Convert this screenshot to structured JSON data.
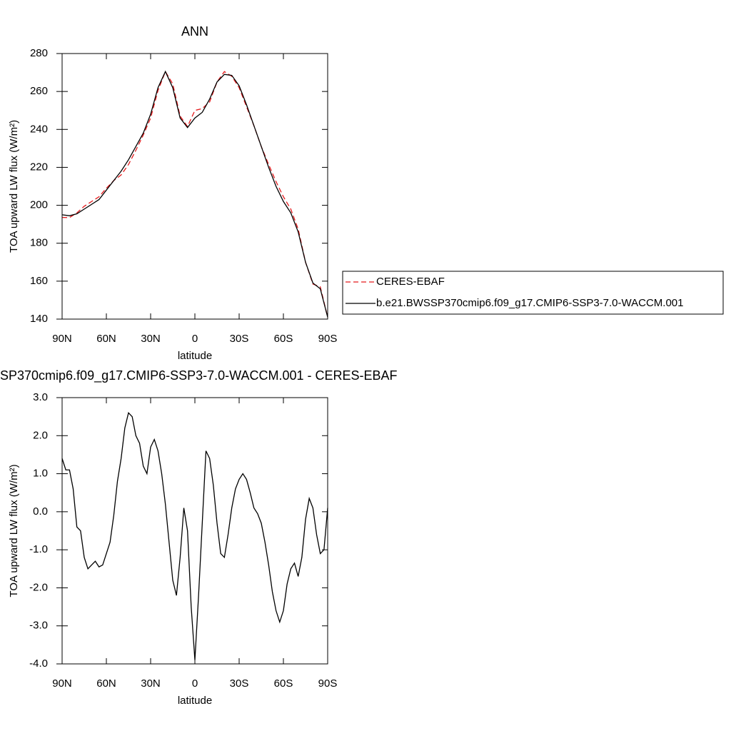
{
  "chart_data": [
    {
      "type": "line",
      "title": "ANN",
      "xlabel": "latitude",
      "ylabel": "TOA upward LW flux (W/m²)",
      "x": [
        90,
        85,
        80,
        75,
        70,
        65,
        60,
        55,
        50,
        45,
        40,
        35,
        30,
        25,
        20,
        15,
        10,
        5,
        0,
        -5,
        -10,
        -15,
        -20,
        -25,
        -30,
        -35,
        -40,
        -45,
        -50,
        -55,
        -60,
        -65,
        -70,
        -75,
        -80,
        -85,
        -90
      ],
      "series": [
        {
          "name": "CERES-EBAF",
          "color": "#e41a1c",
          "dash": true,
          "values": [
            193.6,
            193.5,
            196,
            199.5,
            202,
            204.5,
            209,
            213,
            216,
            221.5,
            229,
            237,
            246,
            260.5,
            270.5,
            264,
            247,
            241.5,
            250,
            251,
            254.5,
            265,
            270.5,
            268,
            262,
            252,
            242,
            231,
            221.5,
            212.5,
            204.5,
            198,
            187.5,
            170,
            158.5,
            157,
            141
          ]
        },
        {
          "name": "b.e21.BWSSP370cmip6.f09_g17.CMIP6-SSP3-7.0-WACCM.001",
          "color": "#000000",
          "dash": false,
          "values": [
            195,
            194.5,
            195.5,
            198,
            200.5,
            203,
            208,
            213,
            218,
            224,
            231,
            238,
            248,
            262,
            270.5,
            262,
            246,
            241,
            246,
            249,
            256,
            265,
            269,
            268.5,
            263,
            253,
            242,
            231,
            220,
            210,
            202,
            196,
            186,
            170,
            159,
            156,
            141
          ]
        }
      ],
      "xlim": [
        90,
        -90
      ],
      "xticks": [
        {
          "value": 90,
          "label": "90N"
        },
        {
          "value": 60,
          "label": "60N"
        },
        {
          "value": 30,
          "label": "30N"
        },
        0,
        {
          "value": -30,
          "label": "30S"
        },
        {
          "value": -60,
          "label": "60S"
        },
        {
          "value": -90,
          "label": "90S"
        }
      ],
      "ylim": [
        140,
        280
      ],
      "yticks": [
        140,
        160,
        180,
        200,
        220,
        240,
        260,
        280
      ],
      "legend": "right"
    },
    {
      "type": "line",
      "title": "SP370cmip6.f09_g17.CMIP6-SSP3-7.0-WACCM.001 - CERES-EBAF",
      "xlabel": "latitude",
      "ylabel": "TOA upward LW flux (W/m²)",
      "x": [
        90,
        87.5,
        85,
        82.5,
        80,
        77.5,
        75,
        72.5,
        70,
        67.5,
        65,
        62.5,
        60,
        57.5,
        55,
        52.5,
        50,
        47.5,
        45,
        42.5,
        40,
        37.5,
        35,
        32.5,
        30,
        27.5,
        25,
        22.5,
        20,
        17.5,
        15,
        12.5,
        10,
        7.5,
        5,
        2.5,
        0,
        -2.5,
        -5,
        -7.5,
        -10,
        -12.5,
        -15,
        -17.5,
        -20,
        -22.5,
        -25,
        -27.5,
        -30,
        -32.5,
        -35,
        -37.5,
        -40,
        -42.5,
        -45,
        -47.5,
        -50,
        -52.5,
        -55,
        -57.5,
        -60,
        -62.5,
        -65,
        -67.5,
        -70,
        -72.5,
        -75,
        -77.5,
        -80,
        -82.5,
        -85,
        -87.5,
        -90
      ],
      "series": [
        {
          "color": "#000000",
          "dash": false,
          "values": [
            1.4,
            1.1,
            1.1,
            0.6,
            -0.4,
            -0.5,
            -1.2,
            -1.5,
            -1.4,
            -1.3,
            -1.45,
            -1.4,
            -1.1,
            -0.8,
            -0.1,
            0.8,
            1.4,
            2.2,
            2.6,
            2.5,
            2.0,
            1.8,
            1.2,
            1.0,
            1.7,
            1.9,
            1.6,
            1.0,
            0.2,
            -0.8,
            -1.8,
            -2.2,
            -1.2,
            0.1,
            -0.5,
            -2.5,
            -3.9,
            -2.2,
            -0.3,
            1.6,
            1.4,
            0.7,
            -0.3,
            -1.1,
            -1.2,
            -0.6,
            0.1,
            0.6,
            0.85,
            1.0,
            0.85,
            0.5,
            0.1,
            -0.05,
            -0.3,
            -0.8,
            -1.4,
            -2.1,
            -2.6,
            -2.9,
            -2.6,
            -1.9,
            -1.5,
            -1.35,
            -1.7,
            -1.2,
            -0.2,
            0.35,
            0.1,
            -0.6,
            -1.1,
            -1.0,
            0.1
          ]
        }
      ],
      "xlim": [
        90,
        -90
      ],
      "xticks": [
        {
          "value": 90,
          "label": "90N"
        },
        {
          "value": 60,
          "label": "60N"
        },
        {
          "value": 30,
          "label": "30N"
        },
        0,
        {
          "value": -30,
          "label": "30S"
        },
        {
          "value": -60,
          "label": "60S"
        },
        {
          "value": -90,
          "label": "90S"
        }
      ],
      "ylim": [
        -4,
        3
      ],
      "yticks": [
        {
          "value": -4,
          "label": "-4.0"
        },
        {
          "value": -3,
          "label": "-3.0"
        },
        {
          "value": -2,
          "label": "-2.0"
        },
        {
          "value": -1,
          "label": "-1.0"
        },
        {
          "value": 0,
          "label": "0.0"
        },
        {
          "value": 1,
          "label": "1.0"
        },
        {
          "value": 2,
          "label": "2.0"
        },
        {
          "value": 3,
          "label": "3.0"
        }
      ]
    }
  ]
}
